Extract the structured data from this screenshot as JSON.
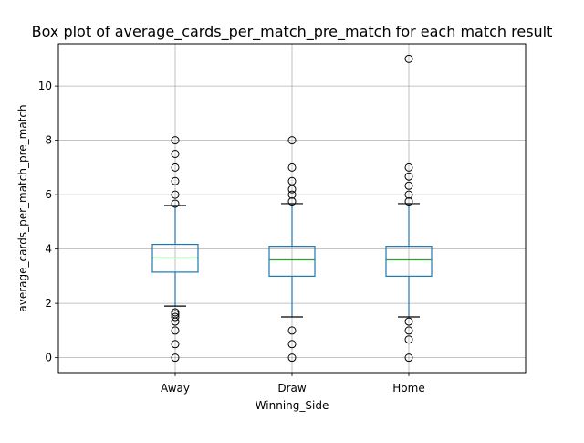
{
  "chart_data": {
    "type": "box",
    "title": "Box plot of average_cards_per_match_pre_match for each match result",
    "xlabel": "Winning_Side",
    "ylabel": "average_cards_per_match_pre_match",
    "ylim": [
      -0.55,
      11.55
    ],
    "yticks": [
      0,
      2,
      4,
      6,
      8,
      10
    ],
    "grid": true,
    "categories": [
      "Away",
      "Draw",
      "Home"
    ],
    "boxes": [
      {
        "category": "Away",
        "whisker_low": 1.9,
        "q1": 3.15,
        "median": 3.67,
        "q3": 4.17,
        "whisker_high": 5.6,
        "outliers": [
          0,
          0.5,
          1.0,
          1.33,
          1.5,
          1.6,
          1.67,
          5.67,
          6.0,
          6.5,
          7.0,
          7.5,
          8.0
        ]
      },
      {
        "category": "Draw",
        "whisker_low": 1.5,
        "q1": 3.0,
        "median": 3.6,
        "q3": 4.1,
        "whisker_high": 5.67,
        "outliers": [
          0,
          0.5,
          1.0,
          5.75,
          6.0,
          6.2,
          6.5,
          7.0,
          8.0
        ]
      },
      {
        "category": "Home",
        "whisker_low": 1.5,
        "q1": 3.0,
        "median": 3.6,
        "q3": 4.1,
        "whisker_high": 5.67,
        "outliers": [
          0,
          0.67,
          1.0,
          1.33,
          5.75,
          6.0,
          6.33,
          6.67,
          7.0,
          11.0
        ]
      }
    ],
    "colors": {
      "box": "#1f77b4",
      "median": "#2ca02c",
      "whisker_cap": "#000000",
      "outlier": "#000000",
      "grid": "#b0b0b0"
    }
  }
}
